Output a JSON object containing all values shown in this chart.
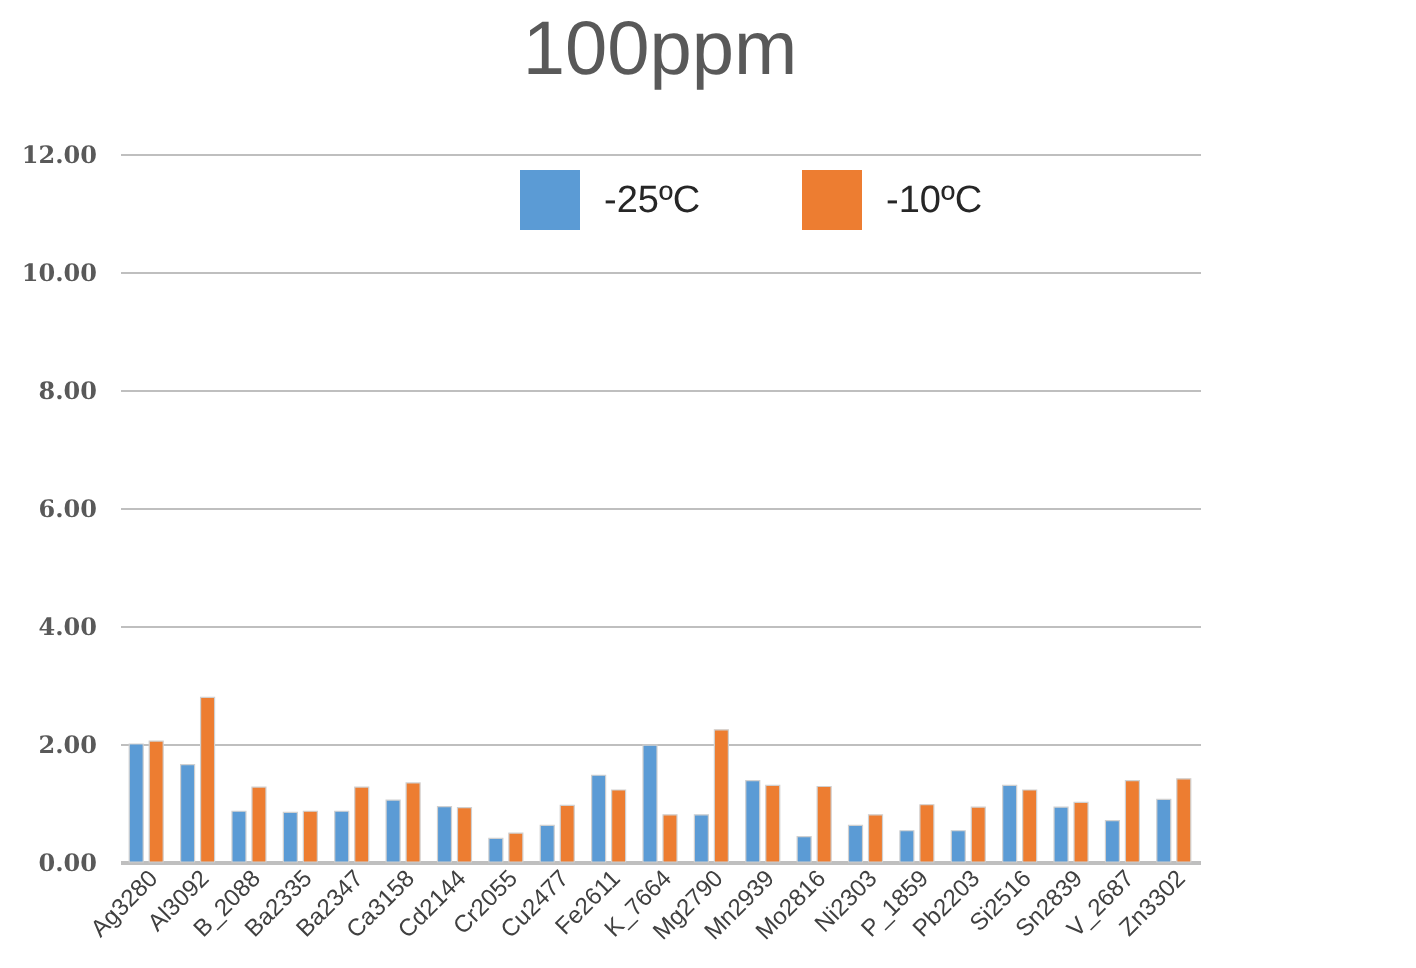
{
  "chart_data": {
    "type": "bar",
    "title": "100ppm",
    "categories": [
      "Ag3280",
      "Al3092",
      "B_2088",
      "Ba2335",
      "Ba2347",
      "Ca3158",
      "Cd2144",
      "Cr2055",
      "Cu2477",
      "Fe2611",
      "K_7664",
      "Mg2790",
      "Mn2939",
      "Mo2816",
      "Ni2303",
      "P_1859",
      "Pb2203",
      "Si2516",
      "Sn2839",
      "V_2687",
      "Zn3302"
    ],
    "series": [
      {
        "name": "-25ºC",
        "color": "#5b9bd5",
        "values": [
          2.0,
          1.65,
          0.86,
          0.84,
          0.86,
          1.05,
          0.94,
          0.4,
          0.62,
          1.47,
          1.98,
          0.8,
          1.38,
          0.43,
          0.62,
          0.53,
          0.53,
          1.3,
          0.93,
          0.7,
          1.06
        ]
      },
      {
        "name": "-10ºC",
        "color": "#ed7d31",
        "values": [
          2.05,
          2.79,
          1.27,
          0.86,
          1.27,
          1.34,
          0.92,
          0.49,
          0.96,
          1.22,
          0.8,
          2.24,
          1.3,
          1.28,
          0.8,
          0.97,
          0.93,
          1.22,
          1.01,
          1.38,
          1.41
        ]
      }
    ],
    "ylim": [
      0,
      12
    ],
    "yticks": [
      {
        "value": 0,
        "label": "0.00"
      },
      {
        "value": 2,
        "label": "2.00"
      },
      {
        "value": 4,
        "label": "4.00"
      },
      {
        "value": 6,
        "label": "6.00"
      },
      {
        "value": 8,
        "label": "8.00"
      },
      {
        "value": 10,
        "label": "10.00"
      },
      {
        "value": 12,
        "label": "12.00"
      }
    ],
    "grid": "y",
    "legend": "top"
  }
}
